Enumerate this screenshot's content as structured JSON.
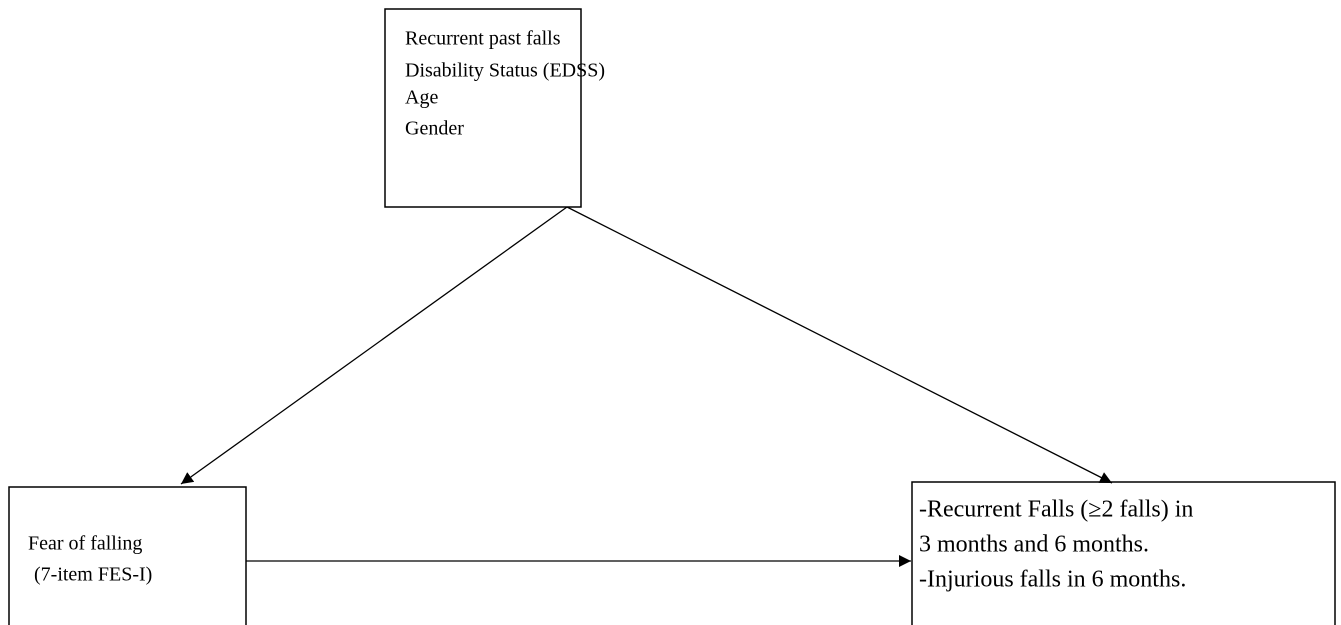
{
  "nodes": [
    {
      "lines": [
        "Recurrent past falls",
        "Disability Status (EDSS)",
        "Age",
        "Gender"
      ]
    },
    {
      "lines": [
        "Fear of falling",
        "(7-item FES-I)"
      ]
    },
    {
      "lines": [
        "-Recurrent Falls (≥2 falls) in",
        "3 months and 6 months.",
        "-Injurious falls in 6 months."
      ]
    }
  ]
}
